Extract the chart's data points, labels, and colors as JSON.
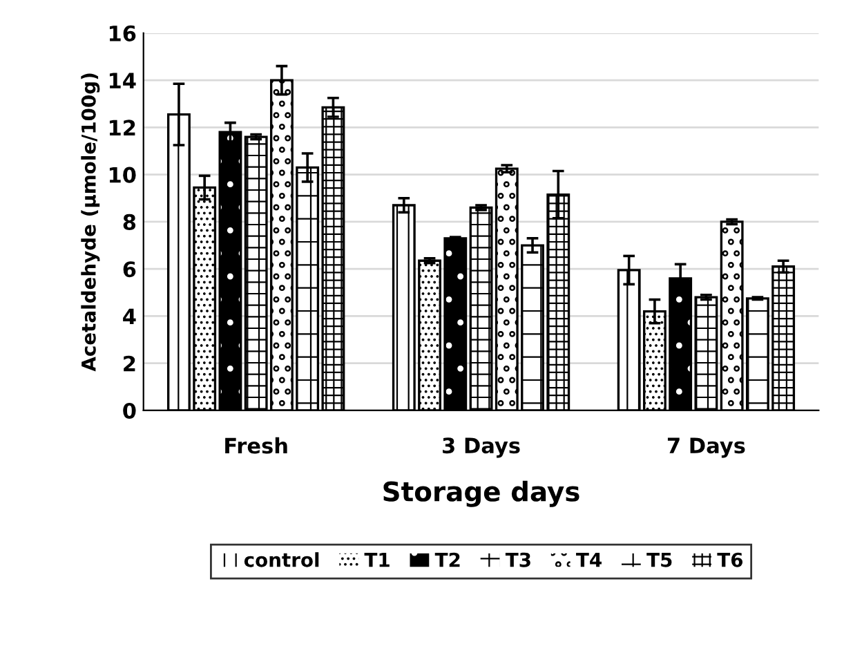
{
  "chart_data": {
    "type": "bar",
    "xlabel": "Storage days",
    "ylabel": "Acetaldehyde (µmole/100g)",
    "categories": [
      "Fresh",
      "3 Days",
      "7 Days"
    ],
    "series": [
      {
        "name": "control",
        "color": "#ffffff",
        "values": [
          12.55,
          8.7,
          5.95
        ],
        "errors": [
          1.3,
          0.3,
          0.6
        ]
      },
      {
        "name": "T1",
        "color": "#ffffff",
        "values": [
          9.45,
          6.35,
          4.2
        ],
        "errors": [
          0.5,
          0.1,
          0.5
        ]
      },
      {
        "name": "T2",
        "color": "#000000",
        "values": [
          11.8,
          7.3,
          5.6
        ],
        "errors": [
          0.4,
          0.05,
          0.6
        ]
      },
      {
        "name": "T3",
        "color": "#ffffff",
        "values": [
          11.6,
          8.6,
          4.8
        ],
        "errors": [
          0.1,
          0.1,
          0.1
        ]
      },
      {
        "name": "T4",
        "color": "#ffffff",
        "values": [
          14.0,
          10.25,
          8.0
        ],
        "errors": [
          0.6,
          0.15,
          0.1
        ]
      },
      {
        "name": "T5",
        "color": "#ffffff",
        "values": [
          10.3,
          7.0,
          4.75
        ],
        "errors": [
          0.6,
          0.3,
          0.05
        ]
      },
      {
        "name": "T6",
        "color": "#ffffff",
        "values": [
          12.85,
          9.15,
          6.1
        ],
        "errors": [
          0.4,
          1.0,
          0.25
        ]
      }
    ],
    "ylim": [
      0,
      16
    ],
    "yticks": [
      0,
      2,
      4,
      6,
      8,
      10,
      12,
      14,
      16
    ],
    "grid": "y",
    "legend": "bottom"
  }
}
